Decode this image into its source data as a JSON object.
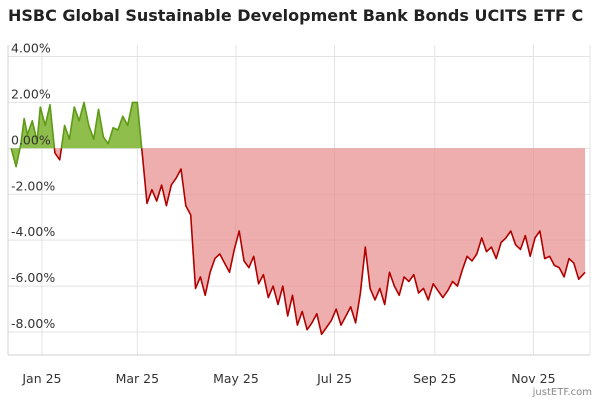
{
  "chart_data": {
    "type": "area",
    "title": "HSBC Global Sustainable Development Bank Bonds UCITS ETF C",
    "xlabel": "",
    "ylabel": "",
    "y_unit": "%",
    "ylim": [
      -9.0,
      4.5
    ],
    "yticks": [
      4,
      2,
      0,
      -2,
      -4,
      -6,
      -8
    ],
    "ytick_labels": [
      "4.00%",
      "2.00%",
      "0.00%",
      "-2.00%",
      "-4.00%",
      "-6.00%",
      "-8.00%"
    ],
    "xlim": [
      "2024-12-25",
      "2025-12-20"
    ],
    "xtick_labels": [
      "Jan 25",
      "Mar 25",
      "May 25",
      "Jul 25",
      "Sep 25",
      "Nov 25"
    ],
    "xtick_dates": [
      "2025-01-15",
      "2025-03-15",
      "2025-05-15",
      "2025-07-15",
      "2025-09-15",
      "2025-11-15"
    ],
    "grid": true,
    "positive_color": "#7bb32e",
    "negative_color": "#e88787",
    "negative_line_color": "#b00000",
    "credit": "justETF.com",
    "series": [
      {
        "x": [
          "2024-12-27",
          "2024-12-30",
          "2025-01-02",
          "2025-01-04",
          "2025-01-06",
          "2025-01-09",
          "2025-01-12",
          "2025-01-14",
          "2025-01-17",
          "2025-01-20",
          "2025-01-23",
          "2025-01-26",
          "2025-01-29",
          "2025-02-01",
          "2025-02-04",
          "2025-02-07",
          "2025-02-10",
          "2025-02-13",
          "2025-02-16",
          "2025-02-19",
          "2025-02-22",
          "2025-02-25",
          "2025-02-28",
          "2025-03-03",
          "2025-03-06",
          "2025-03-09",
          "2025-03-12",
          "2025-03-15",
          "2025-03-18",
          "2025-03-21",
          "2025-03-24",
          "2025-03-27",
          "2025-03-30",
          "2025-04-02",
          "2025-04-05",
          "2025-04-08",
          "2025-04-11",
          "2025-04-14",
          "2025-04-17",
          "2025-04-20",
          "2025-04-23",
          "2025-04-26",
          "2025-04-29",
          "2025-05-02",
          "2025-05-05",
          "2025-05-08",
          "2025-05-11",
          "2025-05-14",
          "2025-05-17",
          "2025-05-20",
          "2025-05-23",
          "2025-05-26",
          "2025-05-29",
          "2025-06-01",
          "2025-06-04",
          "2025-06-07",
          "2025-06-10",
          "2025-06-13",
          "2025-06-16",
          "2025-06-19",
          "2025-06-22",
          "2025-06-25",
          "2025-06-28",
          "2025-07-01",
          "2025-07-04",
          "2025-07-07",
          "2025-07-10",
          "2025-07-13",
          "2025-07-16",
          "2025-07-19",
          "2025-07-22",
          "2025-07-25",
          "2025-07-28",
          "2025-07-31",
          "2025-08-03",
          "2025-08-06",
          "2025-08-09",
          "2025-08-12",
          "2025-08-15",
          "2025-08-18",
          "2025-08-21",
          "2025-08-24",
          "2025-08-27",
          "2025-08-30",
          "2025-09-02",
          "2025-09-05",
          "2025-09-08",
          "2025-09-11",
          "2025-09-14",
          "2025-09-17",
          "2025-09-20",
          "2025-09-23",
          "2025-09-26",
          "2025-09-29",
          "2025-10-02",
          "2025-10-05",
          "2025-10-08",
          "2025-10-11",
          "2025-10-14",
          "2025-10-17",
          "2025-10-20",
          "2025-10-23",
          "2025-10-26",
          "2025-10-29",
          "2025-11-01",
          "2025-11-04",
          "2025-11-07",
          "2025-11-10",
          "2025-11-13",
          "2025-11-16",
          "2025-11-19",
          "2025-11-22",
          "2025-11-25",
          "2025-11-28",
          "2025-12-01",
          "2025-12-04",
          "2025-12-07",
          "2025-12-10",
          "2025-12-13",
          "2025-12-17"
        ],
        "y": [
          0.0,
          -0.8,
          0.2,
          1.3,
          0.6,
          1.2,
          0.3,
          1.8,
          1.0,
          1.9,
          -0.2,
          -0.5,
          1.0,
          0.4,
          1.8,
          1.2,
          2.0,
          1.0,
          0.4,
          1.7,
          0.5,
          0.2,
          0.9,
          0.8,
          1.4,
          1.0,
          2.0,
          2.0,
          -0.2,
          -2.4,
          -1.8,
          -2.3,
          -1.6,
          -2.5,
          -1.6,
          -1.3,
          -0.9,
          -2.5,
          -2.9,
          -6.1,
          -5.6,
          -6.4,
          -5.4,
          -4.8,
          -4.6,
          -5.0,
          -5.4,
          -4.4,
          -3.6,
          -4.9,
          -5.2,
          -4.7,
          -5.9,
          -5.5,
          -6.5,
          -6.0,
          -6.8,
          -6.0,
          -7.3,
          -6.4,
          -7.7,
          -7.1,
          -7.9,
          -7.6,
          -7.2,
          -8.1,
          -7.8,
          -7.5,
          -7.0,
          -7.7,
          -7.3,
          -6.9,
          -7.6,
          -6.3,
          -4.3,
          -6.1,
          -6.6,
          -6.1,
          -6.8,
          -5.4,
          -6.0,
          -6.4,
          -5.6,
          -5.8,
          -5.5,
          -6.3,
          -6.1,
          -6.6,
          -5.9,
          -6.2,
          -6.5,
          -6.2,
          -5.8,
          -6.0,
          -5.3,
          -4.7,
          -4.9,
          -4.6,
          -3.9,
          -4.5,
          -4.3,
          -4.8,
          -4.1,
          -3.9,
          -3.6,
          -4.2,
          -4.4,
          -3.8,
          -4.7,
          -3.9,
          -3.6,
          -4.8,
          -4.7,
          -5.1,
          -5.2,
          -5.6,
          -4.8,
          -5.0,
          -5.7,
          -5.4
        ]
      }
    ]
  }
}
